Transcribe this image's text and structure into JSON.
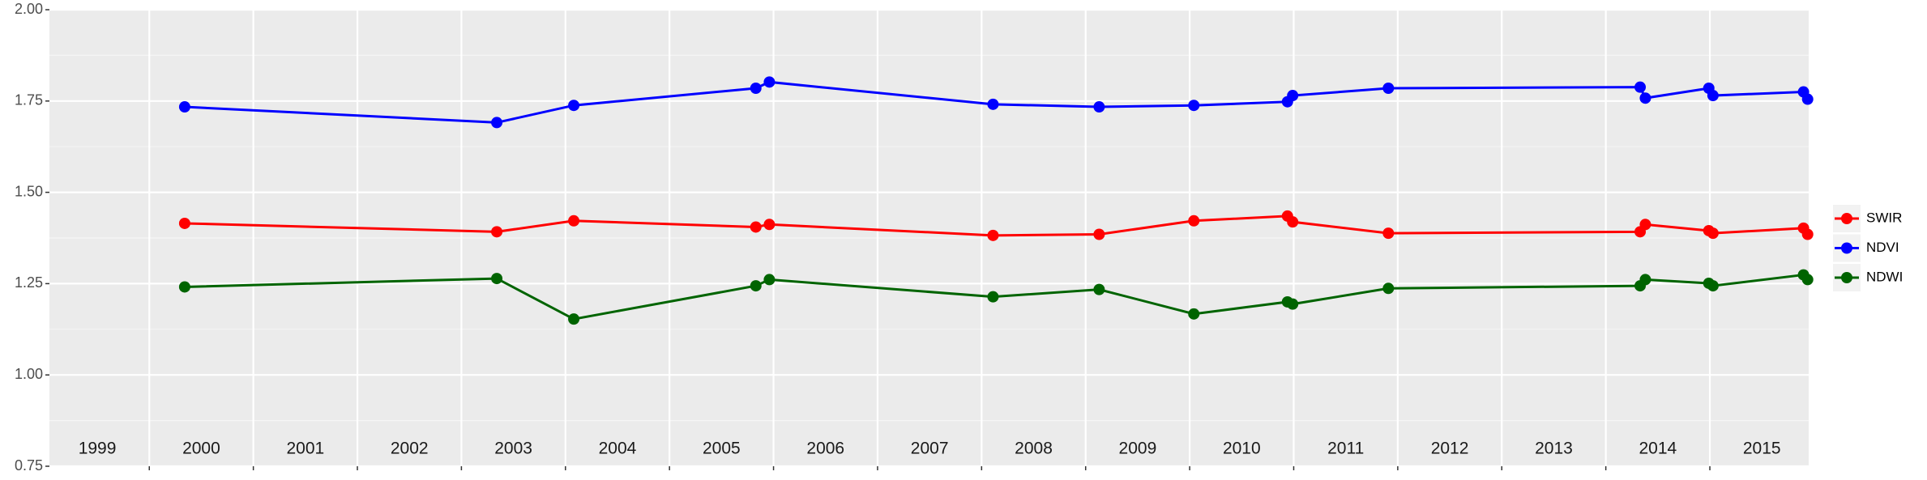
{
  "chart_data": {
    "type": "line",
    "x": [
      2000.34,
      2003.34,
      2004.08,
      2005.83,
      2005.96,
      2008.11,
      2009.13,
      2010.04,
      2010.94,
      2010.99,
      2011.91,
      2014.33,
      2014.38,
      2014.99,
      2015.03,
      2015.9,
      2015.94
    ],
    "series": [
      {
        "name": "SWIR",
        "color": "#ff0000",
        "values": [
          1.415,
          1.392,
          1.422,
          1.405,
          1.412,
          1.382,
          1.385,
          1.422,
          1.435,
          1.419,
          1.388,
          1.392,
          1.412,
          1.395,
          1.388,
          1.402,
          1.385
        ]
      },
      {
        "name": "NDVI",
        "color": "#0000ff",
        "values": [
          1.734,
          1.691,
          1.738,
          1.785,
          1.802,
          1.741,
          1.734,
          1.738,
          1.748,
          1.765,
          1.785,
          1.788,
          1.758,
          1.785,
          1.765,
          1.775,
          1.755
        ]
      },
      {
        "name": "NDWI",
        "color": "#006400",
        "values": [
          1.241,
          1.264,
          1.153,
          1.244,
          1.261,
          1.214,
          1.234,
          1.167,
          1.2,
          1.194,
          1.237,
          1.244,
          1.261,
          1.251,
          1.244,
          1.274,
          1.261
        ]
      }
    ],
    "xlim": [
      1999.04,
      2015.95
    ],
    "xticks": [
      2000,
      2001,
      2002,
      2003,
      2004,
      2005,
      2006,
      2007,
      2008,
      2009,
      2010,
      2011,
      2012,
      2013,
      2014,
      2015
    ],
    "ylim": [
      0.75,
      2.0
    ],
    "yticks": [
      0.75,
      {
        "value": 1,
        "label": "1.00"
      },
      1.25,
      {
        "value": 1.5,
        "label": "1.50"
      },
      1.75,
      {
        "value": 2,
        "label": "2.00"
      }
    ],
    "year_labels": [
      {
        "x": 1999.5,
        "label": "1999"
      },
      {
        "x": 2000.5,
        "label": "2000"
      },
      {
        "x": 2001.5,
        "label": "2001"
      },
      {
        "x": 2002.5,
        "label": "2002"
      },
      {
        "x": 2003.5,
        "label": "2003"
      },
      {
        "x": 2004.5,
        "label": "2004"
      },
      {
        "x": 2005.5,
        "label": "2005"
      },
      {
        "x": 2006.5,
        "label": "2006"
      },
      {
        "x": 2007.5,
        "label": "2007"
      },
      {
        "x": 2008.5,
        "label": "2008"
      },
      {
        "x": 2009.5,
        "label": "2009"
      },
      {
        "x": 2010.5,
        "label": "2010"
      },
      {
        "x": 2011.5,
        "label": "2011"
      },
      {
        "x": 2012.5,
        "label": "2012"
      },
      {
        "x": 2013.5,
        "label": "2013"
      },
      {
        "x": 2014.5,
        "label": "2014"
      },
      {
        "x": 2015.5,
        "label": "2015"
      }
    ],
    "grid": true,
    "legend": "right"
  }
}
